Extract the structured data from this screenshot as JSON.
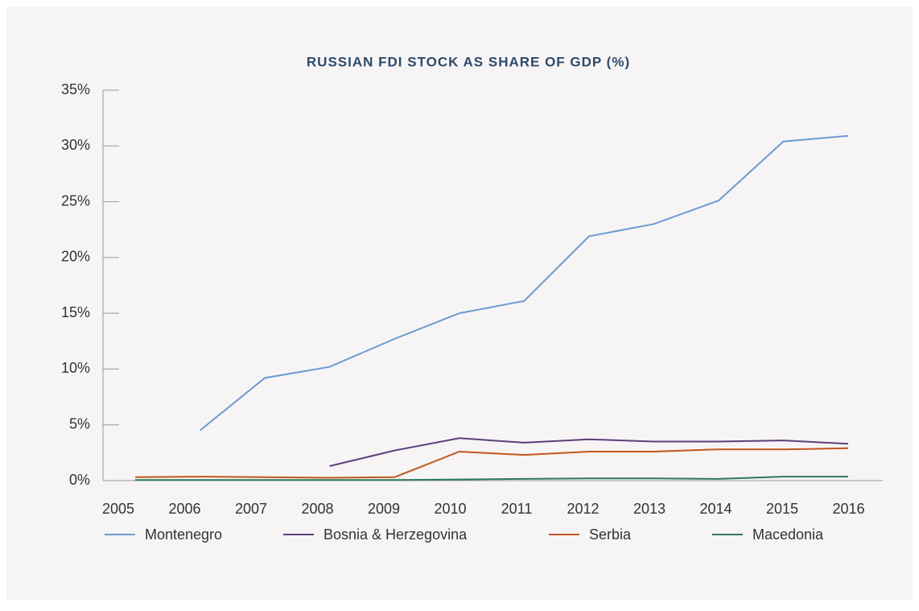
{
  "chart_data": {
    "type": "line",
    "title": "RUSSIAN FDI STOCK AS SHARE OF GDP (%)",
    "categories": [
      "2005",
      "2006",
      "2007",
      "2008",
      "2009",
      "2010",
      "2011",
      "2012",
      "2013",
      "2014",
      "2015",
      "2016"
    ],
    "series": [
      {
        "name": "Montenegro",
        "color": "#6b9bd1",
        "values": [
          null,
          4.5,
          9.2,
          10.2,
          12.7,
          15.0,
          16.1,
          21.9,
          23.0,
          25.1,
          30.4,
          30.9
        ]
      },
      {
        "name": "Bosnia & Herzegovina",
        "color": "#5b3f7a",
        "values": [
          null,
          null,
          null,
          1.3,
          2.7,
          3.8,
          3.4,
          3.7,
          3.5,
          3.5,
          3.6,
          3.3
        ]
      },
      {
        "name": "Serbia",
        "color": "#c0561d",
        "values": [
          0.3,
          0.35,
          0.3,
          0.25,
          0.3,
          2.6,
          2.3,
          2.6,
          2.6,
          2.8,
          2.8,
          2.9
        ]
      },
      {
        "name": "Macedonia",
        "color": "#2e7a5d",
        "values": [
          0.05,
          0.05,
          0.05,
          0.05,
          0.05,
          0.1,
          0.15,
          0.2,
          0.2,
          0.15,
          0.35,
          0.35
        ]
      }
    ],
    "ylim": [
      0,
      35
    ],
    "yticks": [
      {
        "value": 0,
        "label": "0%"
      },
      {
        "value": 5,
        "label": "5%"
      },
      {
        "value": 10,
        "label": "10%"
      },
      {
        "value": 15,
        "label": "15%"
      },
      {
        "value": 20,
        "label": "20%"
      },
      {
        "value": 25,
        "label": "25%"
      },
      {
        "value": 30,
        "label": "30%"
      },
      {
        "value": 35,
        "label": "35%"
      }
    ],
    "legend": "bottom"
  }
}
